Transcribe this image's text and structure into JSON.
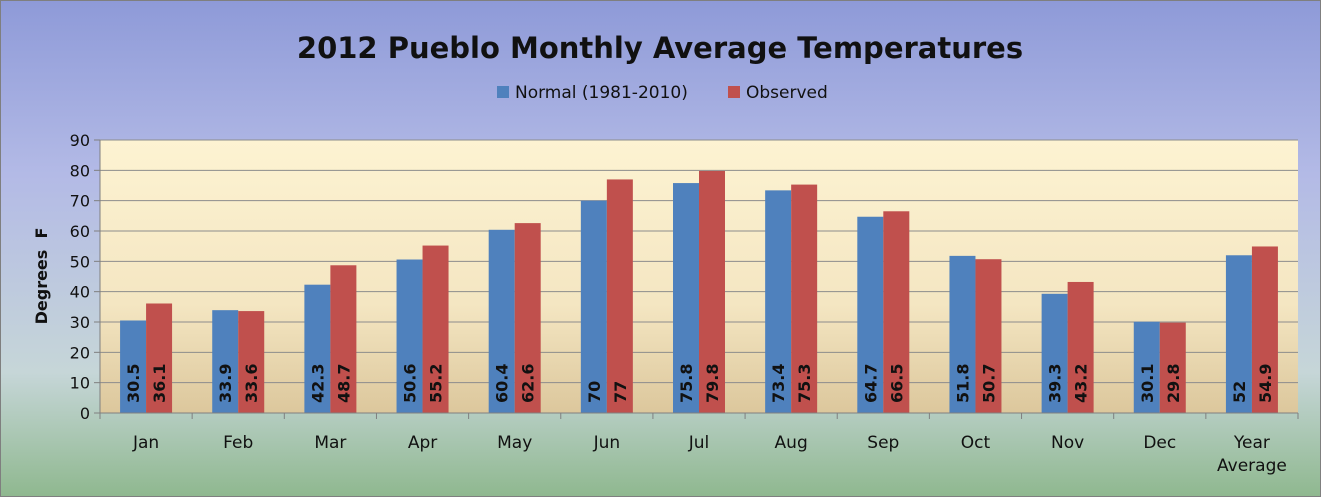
{
  "chart_data": {
    "type": "bar",
    "title": "2012 Pueblo Monthly Average Temperatures",
    "ylabel": "Degrees  F",
    "xlabel": "",
    "ylim": [
      0,
      90
    ],
    "yticks": [
      0,
      10,
      20,
      30,
      40,
      50,
      60,
      70,
      80,
      90
    ],
    "grid": true,
    "legend_position": "top",
    "categories": [
      [
        "Jan"
      ],
      [
        "Feb"
      ],
      [
        "Mar"
      ],
      [
        "Apr"
      ],
      [
        "May"
      ],
      [
        "Jun"
      ],
      [
        "Jul"
      ],
      [
        "Aug"
      ],
      [
        "Sep"
      ],
      [
        "Oct"
      ],
      [
        "Nov"
      ],
      [
        "Dec"
      ],
      [
        "Year",
        "Average"
      ]
    ],
    "series": [
      {
        "name": "Normal (1981-2010)",
        "color": "#4F81BD",
        "values": [
          30.5,
          33.9,
          42.3,
          50.6,
          60.4,
          70,
          75.8,
          73.4,
          64.7,
          51.8,
          39.3,
          30.1,
          52
        ]
      },
      {
        "name": "Observed",
        "color": "#C0504D",
        "values": [
          36.1,
          33.6,
          48.7,
          55.2,
          62.6,
          77,
          79.8,
          75.3,
          66.5,
          50.7,
          43.2,
          29.8,
          54.9
        ]
      }
    ]
  }
}
